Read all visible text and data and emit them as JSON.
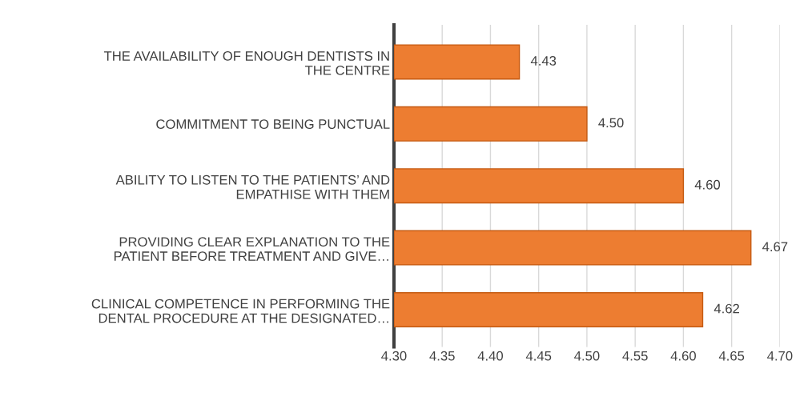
{
  "chart_data": {
    "type": "bar",
    "orientation": "horizontal",
    "categories": [
      "THE AVAILABILITY OF ENOUGH DENTISTS IN\nTHE CENTRE",
      "COMMITMENT TO BEING PUNCTUAL",
      "ABILITY TO LISTEN TO THE PATIENTS’ AND\nEMPATHISE WITH THEM",
      "PROVIDING CLEAR EXPLANATION TO THE\nPATIENT BEFORE TREATMENT AND GIVE…",
      "CLINICAL COMPETENCE IN PERFORMING THE\nDENTAL PROCEDURE AT THE DESIGNATED…"
    ],
    "values": [
      4.43,
      4.5,
      4.6,
      4.67,
      4.62
    ],
    "color": "#ed7d31",
    "xlim": [
      4.3,
      4.7
    ],
    "xticks": [
      {
        "value": 4.3,
        "label": "4.30"
      },
      {
        "value": 4.35,
        "label": "4.35"
      },
      {
        "value": 4.4,
        "label": "4.40"
      },
      {
        "value": 4.45,
        "label": "4.45"
      },
      {
        "value": 4.5,
        "label": "4.50"
      },
      {
        "value": 4.55,
        "label": "4.55"
      },
      {
        "value": 4.6,
        "label": "4.60"
      },
      {
        "value": 4.65,
        "label": "4.65"
      },
      {
        "value": 4.7,
        "label": "4.70"
      }
    ],
    "value_labels": [
      "4.43",
      "4.50",
      "4.60",
      "4.67",
      "4.62"
    ],
    "grid": "x"
  }
}
